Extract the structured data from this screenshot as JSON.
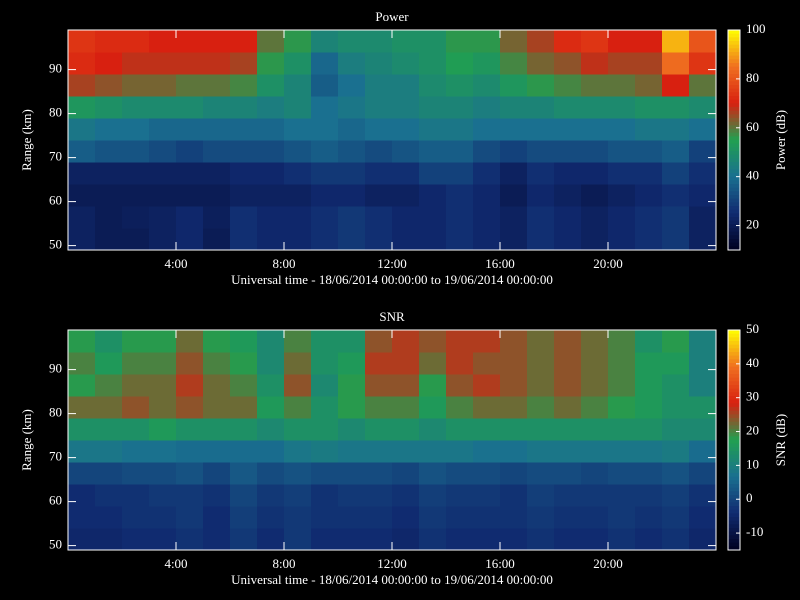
{
  "chart_data": [
    {
      "type": "heatmap",
      "title": "Power",
      "xlabel": "Universal time - 18/06/2014 00:00:00 to 19/06/2014 00:00:00",
      "ylabel": "Range (km)",
      "colorbar_label": "Power (dB)",
      "xbins": [
        0,
        1,
        2,
        3,
        4,
        5,
        6,
        7,
        8,
        9,
        10,
        11,
        12,
        13,
        14,
        15,
        16,
        17,
        18,
        19,
        20,
        21,
        22,
        23,
        24
      ],
      "ybins": [
        49,
        54,
        59,
        64,
        69,
        74,
        79,
        84,
        89,
        94,
        99
      ],
      "xlim": [
        0,
        24
      ],
      "ylim": [
        49,
        99
      ],
      "xticks": [
        {
          "value": 4,
          "label": "4:00"
        },
        {
          "value": 8,
          "label": "8:00"
        },
        {
          "value": 12,
          "label": "12:00"
        },
        {
          "value": 16,
          "label": "16:00"
        },
        {
          "value": 20,
          "label": "20:00"
        }
      ],
      "yticks": [
        50,
        60,
        70,
        80,
        90
      ],
      "clim": [
        10,
        100
      ],
      "cticks": [
        20,
        40,
        60,
        80,
        100
      ],
      "colormap": [
        "#000020",
        "#102a70",
        "#1a7090",
        "#20a050",
        "#d82010",
        "#f07020",
        "#ffff00"
      ],
      "z": [
        [
          22,
          20,
          20,
          22,
          24,
          20,
          26,
          24,
          24,
          26,
          28,
          26,
          24,
          24,
          26,
          24,
          22,
          26,
          24,
          22,
          24,
          26,
          28,
          22
        ],
        [
          22,
          20,
          21,
          22,
          24,
          21,
          26,
          24,
          24,
          26,
          28,
          26,
          24,
          24,
          26,
          24,
          22,
          26,
          24,
          22,
          24,
          26,
          28,
          22
        ],
        [
          20,
          20,
          20,
          20,
          20,
          20,
          22,
          22,
          22,
          24,
          24,
          22,
          22,
          24,
          26,
          24,
          20,
          24,
          22,
          20,
          22,
          24,
          26,
          24
        ],
        [
          22,
          22,
          22,
          22,
          22,
          22,
          24,
          24,
          26,
          28,
          28,
          26,
          26,
          30,
          30,
          26,
          22,
          26,
          24,
          24,
          26,
          26,
          30,
          26
        ],
        [
          36,
          34,
          34,
          32,
          30,
          32,
          32,
          32,
          34,
          36,
          34,
          32,
          34,
          36,
          36,
          32,
          30,
          32,
          32,
          32,
          34,
          34,
          36,
          30
        ],
        [
          42,
          40,
          40,
          38,
          38,
          38,
          38,
          38,
          40,
          40,
          38,
          40,
          40,
          42,
          42,
          40,
          40,
          40,
          40,
          40,
          40,
          42,
          42,
          40
        ],
        [
          52,
          50,
          48,
          48,
          48,
          46,
          46,
          44,
          46,
          40,
          42,
          44,
          44,
          46,
          46,
          44,
          46,
          46,
          48,
          48,
          48,
          50,
          50,
          48
        ],
        [
          66,
          64,
          62,
          62,
          60,
          60,
          58,
          50,
          46,
          36,
          40,
          44,
          44,
          48,
          50,
          48,
          52,
          56,
          58,
          60,
          60,
          62,
          70,
          60
        ],
        [
          72,
          70,
          68,
          68,
          68,
          68,
          66,
          56,
          50,
          38,
          44,
          46,
          48,
          50,
          54,
          52,
          58,
          62,
          64,
          68,
          66,
          66,
          84,
          74
        ],
        [
          74,
          72,
          72,
          70,
          70,
          70,
          70,
          60,
          56,
          46,
          48,
          48,
          50,
          50,
          56,
          56,
          62,
          66,
          72,
          74,
          70,
          70,
          92,
          80
        ]
      ]
    },
    {
      "type": "heatmap",
      "title": "SNR",
      "xlabel": "Universal time - 18/06/2014 00:00:00 to 19/06/2014 00:00:00",
      "ylabel": "Range (km)",
      "colorbar_label": "SNR (dB)",
      "xbins": [
        0,
        1,
        2,
        3,
        4,
        5,
        6,
        7,
        8,
        9,
        10,
        11,
        12,
        13,
        14,
        15,
        16,
        17,
        18,
        19,
        20,
        21,
        22,
        23,
        24
      ],
      "ybins": [
        49,
        54,
        59,
        64,
        69,
        74,
        79,
        84,
        89,
        94,
        99
      ],
      "xlim": [
        0,
        24
      ],
      "ylim": [
        49,
        99
      ],
      "xticks": [
        {
          "value": 4,
          "label": "4:00"
        },
        {
          "value": 8,
          "label": "8:00"
        },
        {
          "value": 12,
          "label": "12:00"
        },
        {
          "value": 16,
          "label": "16:00"
        },
        {
          "value": 20,
          "label": "20:00"
        }
      ],
      "yticks": [
        50,
        60,
        70,
        80,
        90
      ],
      "clim": [
        -15,
        50
      ],
      "cticks": [
        -10,
        0,
        10,
        20,
        30,
        40,
        50
      ],
      "colormap": [
        "#000020",
        "#102a70",
        "#1a7090",
        "#20a050",
        "#d82010",
        "#f07020",
        "#ffff00"
      ],
      "z": [
        [
          -5,
          -5,
          -4,
          -4,
          -3,
          -4,
          -2,
          -4,
          -2,
          -4,
          -4,
          -4,
          -5,
          -3,
          -4,
          -4,
          -4,
          -3,
          -4,
          -4,
          -3,
          -4,
          -3,
          -5
        ],
        [
          -4,
          -4,
          -3,
          -3,
          -2,
          -4,
          -1,
          -3,
          -2,
          -3,
          -3,
          -3,
          -4,
          -2,
          -3,
          -3,
          -3,
          -2,
          -3,
          -3,
          -2,
          -3,
          -2,
          -4
        ],
        [
          -4,
          -3,
          -3,
          -2,
          -2,
          -3,
          0,
          -2,
          -1,
          -3,
          -2,
          -2,
          -3,
          -1,
          -2,
          -2,
          -3,
          -1,
          -2,
          -2,
          -2,
          -2,
          -1,
          -3
        ],
        [
          0,
          0,
          1,
          1,
          2,
          0,
          3,
          1,
          2,
          1,
          1,
          1,
          0,
          2,
          1,
          1,
          0,
          1,
          1,
          0,
          1,
          1,
          2,
          0
        ],
        [
          8,
          8,
          7,
          7,
          6,
          6,
          6,
          6,
          8,
          9,
          8,
          8,
          8,
          8,
          8,
          7,
          7,
          8,
          8,
          8,
          8,
          8,
          9,
          6
        ],
        [
          14,
          14,
          14,
          16,
          14,
          14,
          14,
          12,
          14,
          14,
          12,
          14,
          14,
          12,
          14,
          14,
          14,
          14,
          14,
          14,
          14,
          14,
          12,
          12
        ],
        [
          22,
          22,
          24,
          22,
          24,
          22,
          22,
          16,
          20,
          14,
          18,
          20,
          20,
          16,
          20,
          22,
          22,
          20,
          22,
          20,
          18,
          16,
          14,
          14
        ],
        [
          18,
          20,
          22,
          22,
          26,
          22,
          20,
          14,
          24,
          12,
          18,
          24,
          24,
          18,
          24,
          26,
          24,
          22,
          24,
          22,
          20,
          16,
          14,
          10
        ],
        [
          20,
          16,
          20,
          20,
          24,
          20,
          18,
          12,
          22,
          14,
          16,
          26,
          26,
          22,
          26,
          24,
          24,
          22,
          24,
          22,
          20,
          16,
          16,
          10
        ],
        [
          18,
          14,
          18,
          18,
          22,
          18,
          16,
          12,
          20,
          14,
          14,
          24,
          26,
          24,
          26,
          26,
          24,
          22,
          24,
          22,
          20,
          14,
          18,
          10
        ]
      ]
    }
  ]
}
